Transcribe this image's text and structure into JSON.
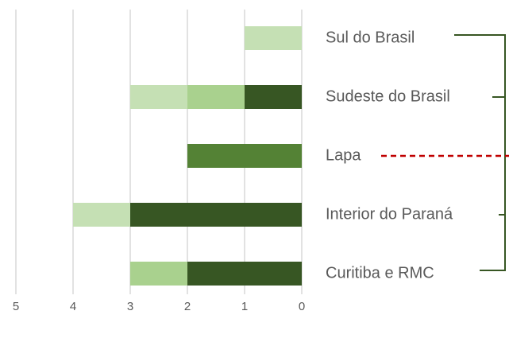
{
  "chart_data": {
    "type": "stacked-barh",
    "categories": [
      "Sul do Brasil",
      "Sudeste do Brasil",
      "Lapa",
      "Interior do Paraná",
      "Curitiba e RMC"
    ],
    "series": [
      {
        "color": "#375623",
        "values": [
          0,
          1,
          0,
          3,
          2
        ]
      },
      {
        "color": "#548235",
        "values": [
          0,
          0,
          2,
          0,
          0
        ]
      },
      {
        "color": "#a9d18e",
        "values": [
          0,
          1,
          0,
          0,
          1
        ]
      },
      {
        "color": "#c5e0b4",
        "values": [
          1,
          1,
          0,
          1,
          0
        ]
      }
    ],
    "xlim": [
      5,
      0
    ],
    "xticks": [
      5,
      4,
      3,
      2,
      1,
      0
    ],
    "grid": true
  }
}
